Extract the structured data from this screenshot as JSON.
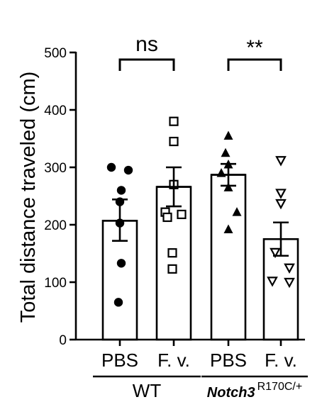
{
  "chart_data": {
    "type": "bar",
    "ylabel": "Total distance traveled (cm)",
    "ylim": [
      0,
      500
    ],
    "yticks": [
      0,
      100,
      200,
      300,
      400,
      500
    ],
    "categories": [
      "PBS",
      "F. v.",
      "PBS",
      "F. v."
    ],
    "groups": [
      {
        "label": "WT",
        "label_suffix": "",
        "categories": [
          0,
          1
        ]
      },
      {
        "label": "Notch3",
        "label_suffix": "R170C/+",
        "categories": [
          2,
          3
        ]
      }
    ],
    "series": [
      {
        "marker": "circle-filled",
        "mean": 207,
        "sem_low": 172,
        "sem_high": 244,
        "points": [
          300,
          295,
          260,
          240,
          203,
          133,
          65
        ]
      },
      {
        "marker": "square-open",
        "mean": 266,
        "sem_low": 232,
        "sem_high": 300,
        "points": [
          380,
          345,
          270,
          222,
          218,
          213,
          151,
          123
        ]
      },
      {
        "marker": "triangle-filled",
        "mean": 287,
        "sem_low": 268,
        "sem_high": 306,
        "points": [
          355,
          325,
          305,
          290,
          265,
          222,
          192
        ]
      },
      {
        "marker": "triangle-open",
        "mean": 175,
        "sem_low": 146,
        "sem_high": 204,
        "points": [
          312,
          255,
          237,
          152,
          125,
          102,
          100
        ]
      }
    ],
    "comparisons": [
      {
        "between": [
          0,
          1
        ],
        "label": "ns"
      },
      {
        "between": [
          2,
          3
        ],
        "label": "**"
      }
    ]
  }
}
